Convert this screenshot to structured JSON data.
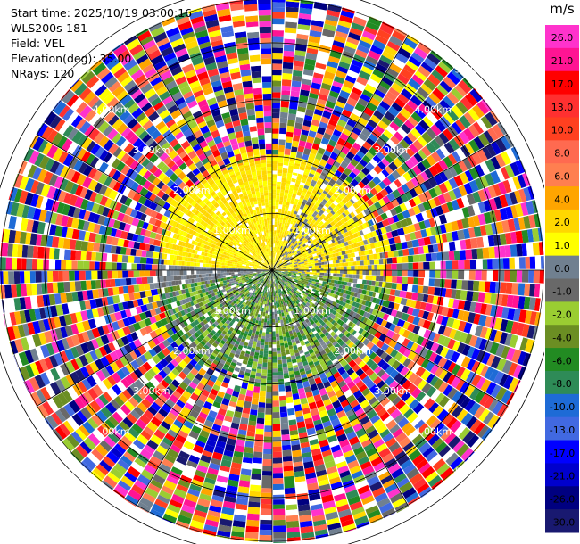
{
  "header": {
    "start_time": "Start time: 2025/10/19 03:00:16",
    "instrument": "WLS200s-181",
    "field": "Field: VEL",
    "elevation": "Elevation(deg): 35.00",
    "nrays": "NRays: 120"
  },
  "chart_data": {
    "type": "heatmap",
    "projection": "polar-ppi",
    "field": "VEL",
    "nrays": 120,
    "elevation_deg": 35.0,
    "max_range_km": 7.2,
    "range_ring_labels": [
      "1.00km",
      "2.00km",
      "3.00km",
      "4.00km",
      "5.00km"
    ],
    "colorbar": {
      "unit": "m/s",
      "ticks": [
        "26.0",
        "21.0",
        "17.0",
        "13.0",
        "10.0",
        "8.0",
        "6.0",
        "4.0",
        "2.0",
        "1.0",
        "0.0",
        "-1.0",
        "-2.0",
        "-4.0",
        "-6.0",
        "-8.0",
        "-10.0",
        "-13.0",
        "-17.0",
        "-21.0",
        "-26.0",
        "-30.0"
      ],
      "colors": [
        "#ff33cc",
        "#ff1493",
        "#ff0000",
        "#ff3030",
        "#ff4020",
        "#ff6a50",
        "#ff7f50",
        "#ffa500",
        "#ffd700",
        "#ffff00",
        "#708090",
        "#696969",
        "#9acd32",
        "#6b8e23",
        "#228b22",
        "#2e8b57",
        "#1e6bd6",
        "#4169e1",
        "#0000ff",
        "#0000cd",
        "#000080",
        "#191970"
      ]
    }
  }
}
